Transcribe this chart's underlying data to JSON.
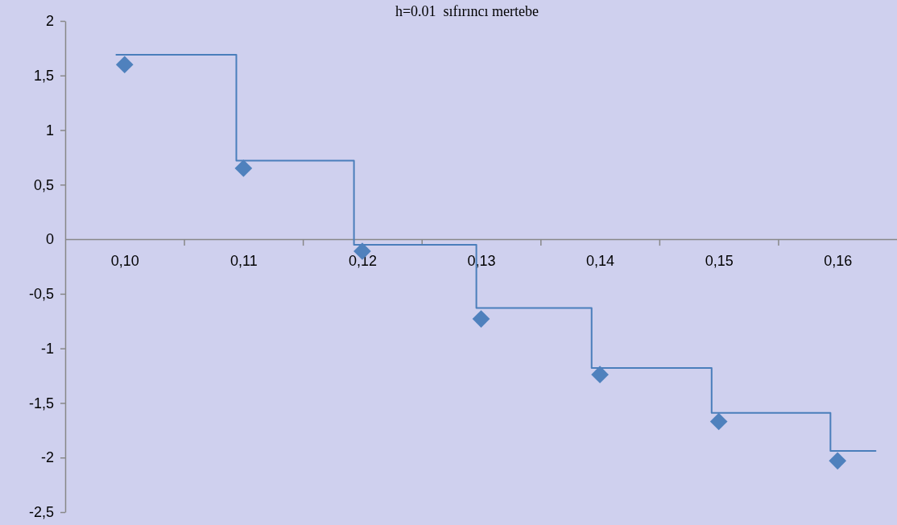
{
  "chart_data": {
    "type": "scatter",
    "title": "h=0.01  sıfırıncı mertebe",
    "xlim": [
      0.095,
      0.165
    ],
    "xticks": [
      {
        "value": 0.1,
        "label": "0,10"
      },
      {
        "value": 0.105,
        "label": null
      },
      {
        "value": 0.11,
        "label": "0,11"
      },
      {
        "value": 0.115,
        "label": null
      },
      {
        "value": 0.12,
        "label": "0,12"
      },
      {
        "value": 0.125,
        "label": null
      },
      {
        "value": 0.13,
        "label": "0,13"
      },
      {
        "value": 0.135,
        "label": null
      },
      {
        "value": 0.14,
        "label": "0,14"
      },
      {
        "value": 0.145,
        "label": null
      },
      {
        "value": 0.15,
        "label": "0,15"
      },
      {
        "value": 0.155,
        "label": null
      },
      {
        "value": 0.16,
        "label": "0,16"
      }
    ],
    "ylim": [
      -2.5,
      2
    ],
    "yticks": [
      {
        "value": -2.5,
        "label": "-2,5"
      },
      -2,
      {
        "value": -1.5,
        "label": "-1,5"
      },
      -1,
      {
        "value": -0.5,
        "label": "-0,5"
      },
      0,
      {
        "value": 0.5,
        "label": "0,5"
      },
      1,
      {
        "value": 1.5,
        "label": "1,5"
      },
      2
    ],
    "grid": false,
    "series": [
      {
        "type": "step",
        "color": "#4a7ebb",
        "marker": "none",
        "line_style": "solid",
        "x": [
          0.0993,
          0.1094,
          0.1193,
          0.1296,
          0.1393,
          0.1494,
          0.1594,
          0.1632
        ],
        "values": [
          1.69,
          0.72,
          -0.05,
          -0.63,
          -1.18,
          -1.59,
          -1.94,
          -1.94
        ]
      },
      {
        "color": "#4f81bd",
        "marker": "diamond",
        "x": [
          0.1,
          0.11,
          0.12,
          0.13,
          0.14,
          0.15,
          0.16
        ],
        "values": [
          1.6,
          0.65,
          -0.11,
          -0.73,
          -1.24,
          -1.67,
          -2.03
        ]
      }
    ]
  }
}
